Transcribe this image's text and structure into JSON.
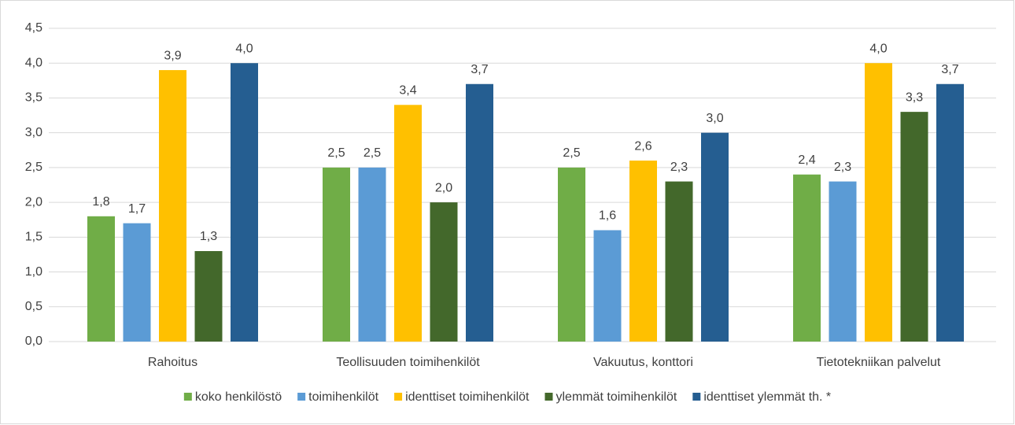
{
  "chart_data": {
    "type": "bar",
    "categories": [
      "Rahoitus",
      "Teollisuuden toimihenkilöt",
      "Vakuutus, konttori",
      "Tietotekniikan palvelut"
    ],
    "series": [
      {
        "name": "koko henkilöstö",
        "color": "#70ad47",
        "values": [
          1.8,
          2.5,
          2.5,
          2.4
        ],
        "value_labels": [
          "1,8",
          "2,5",
          "2,5",
          "2,4"
        ]
      },
      {
        "name": "toimihenkilöt",
        "color": "#5b9bd5",
        "values": [
          1.7,
          2.5,
          1.6,
          2.3
        ],
        "value_labels": [
          "1,7",
          "2,5",
          "1,6",
          "2,3"
        ]
      },
      {
        "name": "identtiset toimihenkilöt",
        "color": "#ffc000",
        "values": [
          3.9,
          3.4,
          2.6,
          4.0
        ],
        "value_labels": [
          "3,9",
          "3,4",
          "2,6",
          "4,0"
        ]
      },
      {
        "name": "ylemmät toimihenkilöt",
        "color": "#43682b",
        "values": [
          1.3,
          2.0,
          2.3,
          3.3
        ],
        "value_labels": [
          "1,3",
          "2,0",
          "2,3",
          "3,3"
        ]
      },
      {
        "name": "identtiset ylemmät th. *",
        "color": "#255e91",
        "values": [
          4.0,
          3.7,
          3.0,
          3.7
        ],
        "value_labels": [
          "4,0",
          "3,7",
          "3,0",
          "3,7"
        ]
      }
    ],
    "ylim": [
      0,
      4.5
    ],
    "yticks": [
      {
        "value": 0,
        "label": "0,0"
      },
      {
        "value": 0.5,
        "label": "0,5"
      },
      {
        "value": 1,
        "label": "1,0"
      },
      {
        "value": 1.5,
        "label": "1,5"
      },
      {
        "value": 2,
        "label": "2,0"
      },
      {
        "value": 2.5,
        "label": "2,5"
      },
      {
        "value": 3,
        "label": "3,0"
      },
      {
        "value": 3.5,
        "label": "3,5"
      },
      {
        "value": 4,
        "label": "4,0"
      },
      {
        "value": 4.5,
        "label": "4,5"
      }
    ],
    "grid": true,
    "legend": "bottom"
  }
}
